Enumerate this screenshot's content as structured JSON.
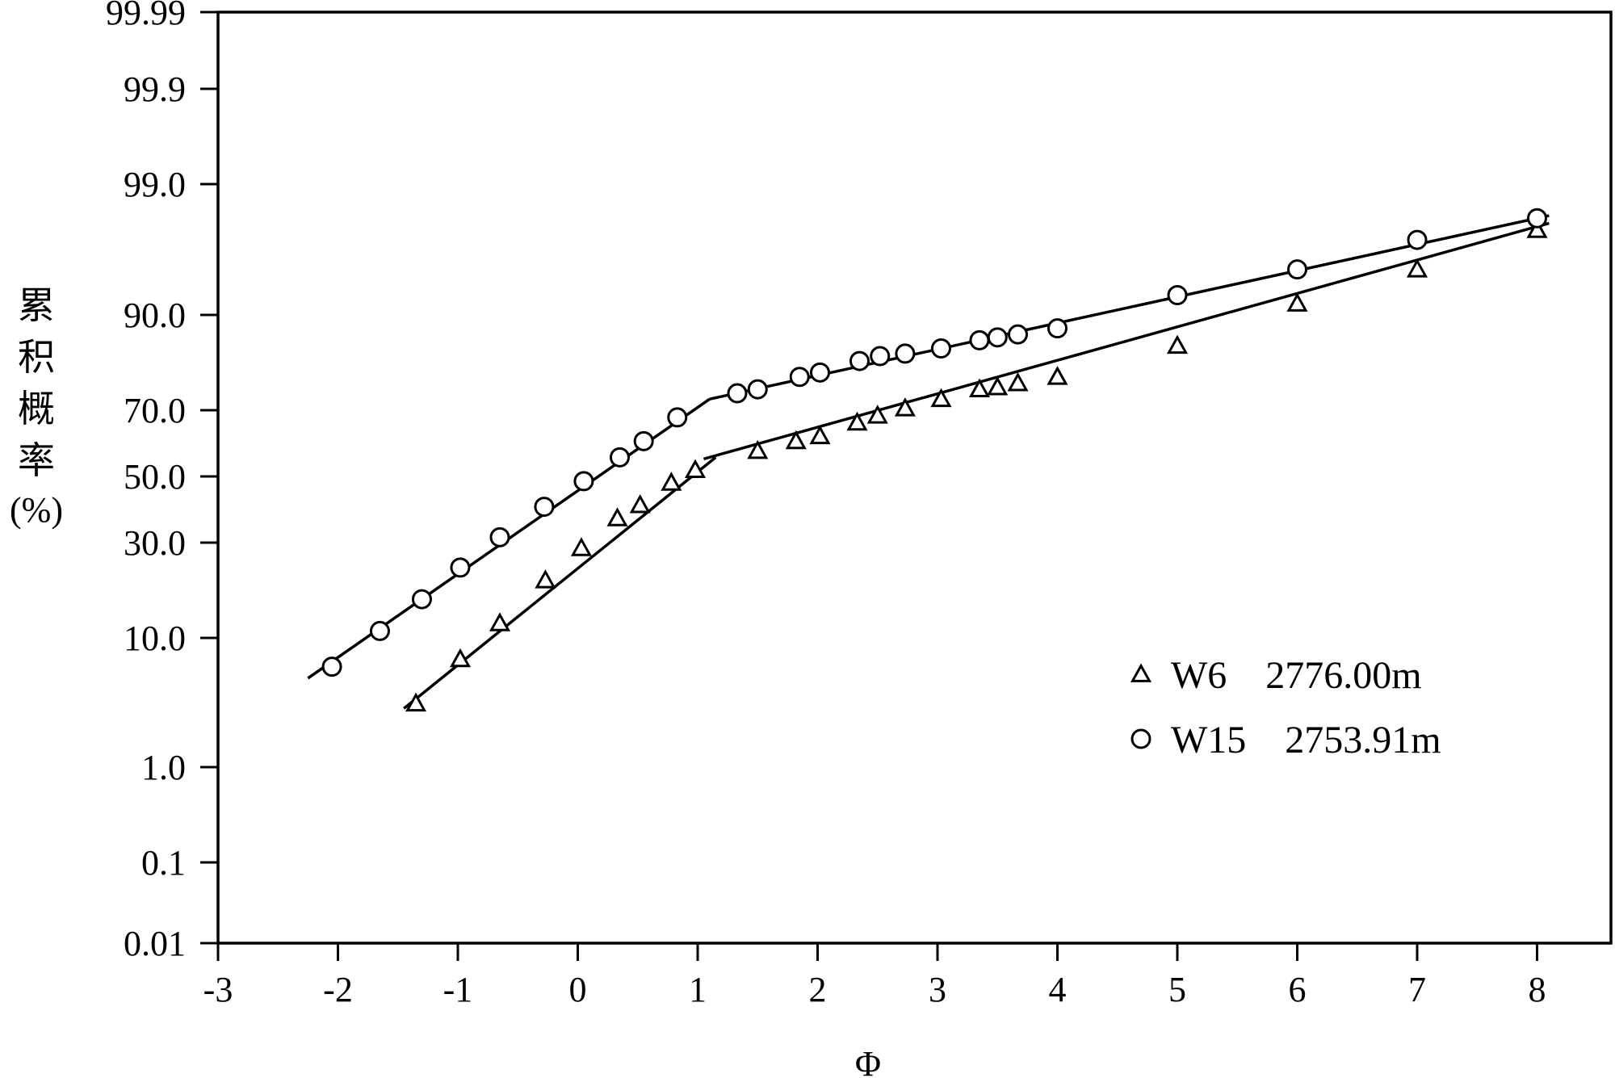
{
  "chart_data": {
    "type": "scatter",
    "title": "",
    "xlabel": "Φ",
    "ylabel_chars": [
      "累",
      "积",
      "概",
      "率"
    ],
    "ylabel_unit": "(%)",
    "xlim": [
      -3,
      8.6
    ],
    "x_ticks": [
      -3,
      -2,
      -1,
      0,
      1,
      2,
      3,
      4,
      5,
      6,
      7,
      8
    ],
    "x_tick_labels": [
      "-3",
      "-2",
      "-1",
      "0",
      "1",
      "2",
      "3",
      "4",
      "5",
      "6",
      "7",
      "8"
    ],
    "y_scale": "probability",
    "y_ticks": [
      0.01,
      0.1,
      1.0,
      10.0,
      30.0,
      50.0,
      70.0,
      90.0,
      99.0,
      99.9,
      99.99
    ],
    "y_tick_labels": [
      "0.01",
      "0.1",
      "1.0",
      "10.0",
      "30.0",
      "50.0",
      "70.0",
      "90.0",
      "99.0",
      "99.9",
      "99.99"
    ],
    "grid": false,
    "legend_position": "lower-right",
    "series": [
      {
        "name": "W6    2776.00m",
        "marker": "triangle",
        "x": [
          -1.35,
          -0.98,
          -0.65,
          -0.27,
          0.03,
          0.33,
          0.52,
          0.78,
          0.98,
          1.5,
          1.82,
          2.02,
          2.33,
          2.5,
          2.73,
          3.03,
          3.35,
          3.5,
          3.67,
          4.0,
          5.0,
          6.0,
          7.0,
          8.0
        ],
        "y": [
          3.5,
          7.3,
          12.2,
          20.5,
          28.5,
          37.0,
          41.0,
          48.0,
          52.0,
          58.0,
          61.0,
          62.5,
          66.5,
          68.5,
          70.5,
          73.0,
          75.5,
          76.0,
          77.0,
          78.5,
          85.0,
          91.5,
          95.0,
          97.5
        ],
        "fit_lines": [
          [
            [
              -1.45,
              3.2
            ],
            [
              1.15,
              56.0
            ]
          ],
          [
            [
              1.05,
              55.5
            ],
            [
              8.1,
              97.8
            ]
          ]
        ]
      },
      {
        "name": "W15    2753.91m",
        "marker": "circle",
        "x": [
          -2.05,
          -1.65,
          -1.3,
          -0.98,
          -0.65,
          -0.28,
          0.05,
          0.35,
          0.55,
          0.83,
          1.33,
          1.5,
          1.85,
          2.02,
          2.35,
          2.52,
          2.73,
          3.03,
          3.35,
          3.5,
          3.67,
          4.0,
          5.0,
          6.0,
          7.0,
          8.0
        ],
        "y": [
          6.5,
          11.0,
          16.5,
          23.5,
          31.5,
          40.5,
          48.5,
          56.0,
          61.0,
          68.0,
          74.5,
          75.5,
          78.5,
          79.5,
          82.0,
          83.0,
          83.5,
          84.5,
          86.0,
          86.5,
          87.0,
          88.0,
          92.5,
          95.0,
          97.0,
          98.0
        ],
        "fit_lines": [
          [
            [
              -2.25,
              5.4
            ],
            [
              1.1,
              73.0
            ]
          ],
          [
            [
              1.1,
              73.0
            ],
            [
              8.1,
              98.1
            ]
          ]
        ]
      }
    ]
  }
}
